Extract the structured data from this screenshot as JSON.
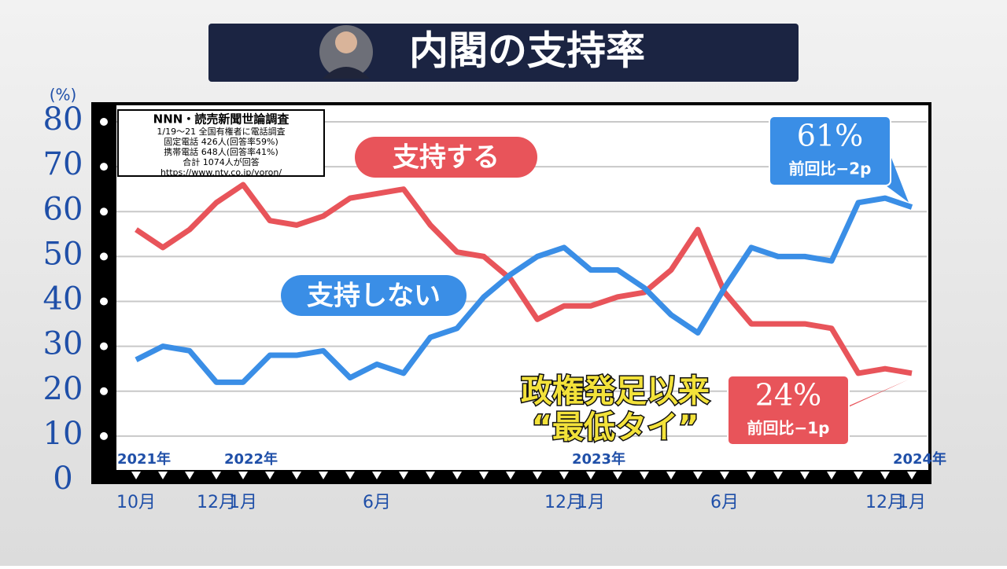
{
  "chart_data": {
    "type": "line",
    "title": "内閣の支持率",
    "y_unit": "(%)",
    "categories": [
      "10月",
      null,
      null,
      "12月",
      "1月",
      null,
      null,
      null,
      null,
      "6月",
      null,
      null,
      null,
      null,
      null,
      null,
      "12月",
      "1月",
      null,
      null,
      null,
      null,
      "6月",
      null,
      null,
      null,
      null,
      null,
      "12月",
      "1月"
    ],
    "years": [
      "2021年",
      null,
      null,
      null,
      "2022年",
      null,
      null,
      null,
      null,
      null,
      null,
      null,
      null,
      null,
      null,
      null,
      null,
      "2023年",
      null,
      null,
      null,
      null,
      null,
      null,
      null,
      null,
      null,
      null,
      null,
      "2024年"
    ],
    "series": [
      {
        "name": "支持する",
        "color": "#e8545a",
        "values": [
          56,
          52,
          56,
          62,
          66,
          58,
          57,
          59,
          63,
          64,
          65,
          57,
          51,
          50,
          45,
          36,
          39,
          39,
          41,
          42,
          47,
          56,
          42,
          35,
          35,
          35,
          34,
          24,
          25,
          24
        ],
        "value_labels": [
          null,
          null,
          null,
          null,
          null,
          null,
          null,
          null,
          null,
          null,
          null,
          null,
          null,
          null,
          null,
          null,
          null,
          null,
          null,
          null,
          null,
          null,
          null,
          null,
          null,
          null,
          null,
          null,
          null,
          "24%"
        ],
        "change": "前回比−1p"
      },
      {
        "name": "支持しない",
        "color": "#3a8ee6",
        "values": [
          27,
          30,
          29,
          22,
          22,
          28,
          28,
          29,
          23,
          26,
          24,
          32,
          34,
          41,
          46,
          50,
          52,
          47,
          47,
          43,
          37,
          33,
          43,
          52,
          50,
          50,
          49,
          62,
          63,
          61
        ],
        "value_labels": [
          null,
          null,
          null,
          null,
          null,
          null,
          null,
          null,
          null,
          null,
          null,
          null,
          null,
          null,
          null,
          null,
          null,
          null,
          null,
          null,
          null,
          null,
          null,
          null,
          null,
          null,
          null,
          null,
          null,
          "61%"
        ],
        "change": "前回比−2p"
      }
    ],
    "ylim": [
      0,
      80
    ],
    "yticks": [
      0,
      10,
      20,
      30,
      40,
      50,
      60,
      70,
      80
    ],
    "grid": true,
    "source": [
      "NNN・読売新聞世論調査",
      "1/19～21 全国有権者に電話調査",
      "固定電話 426人(回答率59%)",
      "携帯電話 648人(回答率41%)",
      "合計 1074人が回答",
      "https://www.ntv.co.jp/yoron/"
    ],
    "annotation": [
      "政権発足以来",
      "“最低タイ”"
    ]
  }
}
